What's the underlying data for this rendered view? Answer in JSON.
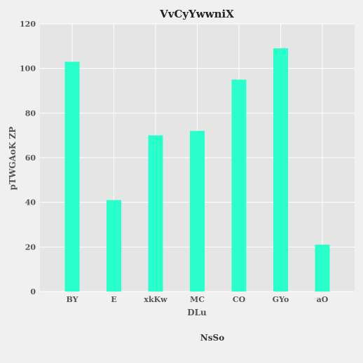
{
  "chart_data": {
    "type": "bar",
    "title": "VvCyYwwniX",
    "xlabel": "DLu",
    "ylabel": "pTWGAoK ZP",
    "caption": "NsSo",
    "categories": [
      "BY",
      "E",
      "xkKw",
      "MC",
      "CO",
      "GYo",
      "aO"
    ],
    "values": [
      103,
      41,
      70,
      72,
      95,
      109,
      21
    ],
    "ylim": [
      0,
      120
    ],
    "yticks": [
      0,
      20,
      40,
      60,
      80,
      100,
      120
    ],
    "grid": true,
    "legend": "none",
    "colors": {
      "bar": "#29ffcb",
      "plot_background": "#e5e5e5",
      "page_background": "#f0f0f0",
      "grid": "#ffffff"
    }
  }
}
